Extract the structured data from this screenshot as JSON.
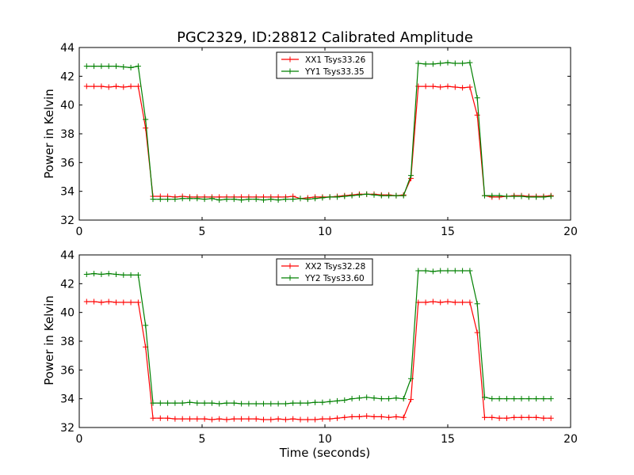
{
  "chart_data": [
    {
      "type": "line",
      "title": "PGC2329, ID:28812 Calibrated Amplitude",
      "xlabel": "",
      "ylabel": "Power in Kelvin",
      "xlim": [
        0,
        20
      ],
      "ylim": [
        32,
        44
      ],
      "xticks": [
        "0",
        "5",
        "10",
        "15",
        "20"
      ],
      "yticks": [
        "32",
        "34",
        "36",
        "38",
        "40",
        "42",
        "44"
      ],
      "grid": false,
      "legend_position": "top-center",
      "x": [
        0.3,
        0.6,
        0.9,
        1.2,
        1.5,
        1.8,
        2.1,
        2.4,
        2.7,
        3.0,
        3.3,
        3.6,
        3.9,
        4.2,
        4.5,
        4.8,
        5.1,
        5.4,
        5.7,
        6.0,
        6.3,
        6.6,
        6.9,
        7.2,
        7.5,
        7.8,
        8.1,
        8.4,
        8.7,
        9.0,
        9.3,
        9.6,
        9.9,
        10.2,
        10.5,
        10.8,
        11.1,
        11.4,
        11.7,
        12.0,
        12.3,
        12.6,
        12.9,
        13.2,
        13.5,
        13.8,
        14.1,
        14.4,
        14.7,
        15.0,
        15.3,
        15.6,
        15.9,
        16.2,
        16.5,
        16.8,
        17.1,
        17.4,
        17.7,
        18.0,
        18.3,
        18.6,
        18.9,
        19.2
      ],
      "series": [
        {
          "name": "XX1 Tsys33.26",
          "color": "#ff0000",
          "values": [
            41.3,
            41.3,
            41.3,
            41.25,
            41.3,
            41.25,
            41.3,
            41.3,
            38.4,
            33.65,
            33.65,
            33.65,
            33.6,
            33.65,
            33.6,
            33.6,
            33.6,
            33.6,
            33.6,
            33.6,
            33.6,
            33.6,
            33.6,
            33.6,
            33.6,
            33.6,
            33.6,
            33.6,
            33.65,
            33.5,
            33.55,
            33.6,
            33.6,
            33.6,
            33.65,
            33.7,
            33.75,
            33.8,
            33.8,
            33.8,
            33.75,
            33.75,
            33.7,
            33.75,
            34.9,
            41.3,
            41.3,
            41.3,
            41.25,
            41.3,
            41.25,
            41.2,
            41.25,
            39.3,
            33.7,
            33.6,
            33.6,
            33.65,
            33.7,
            33.7,
            33.65,
            33.65,
            33.65,
            33.7
          ]
        },
        {
          "name": "YY1 Tsys33.35",
          "color": "#008000",
          "values": [
            42.7,
            42.7,
            42.7,
            42.7,
            42.7,
            42.65,
            42.6,
            42.7,
            39.0,
            33.45,
            33.45,
            33.45,
            33.45,
            33.5,
            33.5,
            33.5,
            33.45,
            33.5,
            33.4,
            33.45,
            33.45,
            33.4,
            33.45,
            33.45,
            33.4,
            33.45,
            33.4,
            33.45,
            33.45,
            33.5,
            33.45,
            33.5,
            33.55,
            33.6,
            33.6,
            33.65,
            33.7,
            33.75,
            33.8,
            33.75,
            33.7,
            33.7,
            33.7,
            33.7,
            35.1,
            42.9,
            42.85,
            42.85,
            42.9,
            42.95,
            42.9,
            42.9,
            42.95,
            40.5,
            33.7,
            33.7,
            33.7,
            33.65,
            33.65,
            33.65,
            33.6,
            33.6,
            33.6,
            33.65
          ]
        }
      ]
    },
    {
      "type": "line",
      "title": "",
      "xlabel": "Time (seconds)",
      "ylabel": "Power in Kelvin",
      "xlim": [
        0,
        20
      ],
      "ylim": [
        32,
        44
      ],
      "xticks": [
        "0",
        "5",
        "10",
        "15",
        "20"
      ],
      "yticks": [
        "32",
        "34",
        "36",
        "38",
        "40",
        "42",
        "44"
      ],
      "grid": false,
      "legend_position": "top-center",
      "x": [
        0.3,
        0.6,
        0.9,
        1.2,
        1.5,
        1.8,
        2.1,
        2.4,
        2.7,
        3.0,
        3.3,
        3.6,
        3.9,
        4.2,
        4.5,
        4.8,
        5.1,
        5.4,
        5.7,
        6.0,
        6.3,
        6.6,
        6.9,
        7.2,
        7.5,
        7.8,
        8.1,
        8.4,
        8.7,
        9.0,
        9.3,
        9.6,
        9.9,
        10.2,
        10.5,
        10.8,
        11.1,
        11.4,
        11.7,
        12.0,
        12.3,
        12.6,
        12.9,
        13.2,
        13.5,
        13.8,
        14.1,
        14.4,
        14.7,
        15.0,
        15.3,
        15.6,
        15.9,
        16.2,
        16.5,
        16.8,
        17.1,
        17.4,
        17.7,
        18.0,
        18.3,
        18.6,
        18.9,
        19.2
      ],
      "series": [
        {
          "name": "XX2 Tsys32.28",
          "color": "#ff0000",
          "values": [
            40.75,
            40.75,
            40.7,
            40.75,
            40.7,
            40.7,
            40.7,
            40.7,
            37.6,
            32.65,
            32.65,
            32.65,
            32.6,
            32.6,
            32.6,
            32.6,
            32.6,
            32.55,
            32.6,
            32.55,
            32.6,
            32.6,
            32.6,
            32.6,
            32.55,
            32.55,
            32.6,
            32.55,
            32.6,
            32.55,
            32.55,
            32.55,
            32.6,
            32.6,
            32.65,
            32.7,
            32.75,
            32.75,
            32.8,
            32.75,
            32.75,
            32.7,
            32.75,
            32.7,
            33.95,
            40.7,
            40.7,
            40.75,
            40.7,
            40.75,
            40.7,
            40.7,
            40.7,
            38.6,
            32.7,
            32.7,
            32.65,
            32.65,
            32.7,
            32.7,
            32.7,
            32.7,
            32.65,
            32.65
          ]
        },
        {
          "name": "YY2 Tsys33.60",
          "color": "#008000",
          "values": [
            42.65,
            42.7,
            42.65,
            42.7,
            42.65,
            42.6,
            42.6,
            42.6,
            39.1,
            33.7,
            33.7,
            33.7,
            33.7,
            33.7,
            33.75,
            33.7,
            33.7,
            33.7,
            33.65,
            33.7,
            33.7,
            33.65,
            33.65,
            33.65,
            33.65,
            33.65,
            33.65,
            33.65,
            33.7,
            33.7,
            33.7,
            33.75,
            33.75,
            33.8,
            33.85,
            33.9,
            34.0,
            34.05,
            34.1,
            34.05,
            34.0,
            34.0,
            34.05,
            34.0,
            35.4,
            42.9,
            42.9,
            42.85,
            42.9,
            42.9,
            42.9,
            42.9,
            42.9,
            40.6,
            34.1,
            34.0,
            34.0,
            34.0,
            34.0,
            34.0,
            34.0,
            34.0,
            34.0,
            34.0
          ]
        }
      ]
    }
  ]
}
